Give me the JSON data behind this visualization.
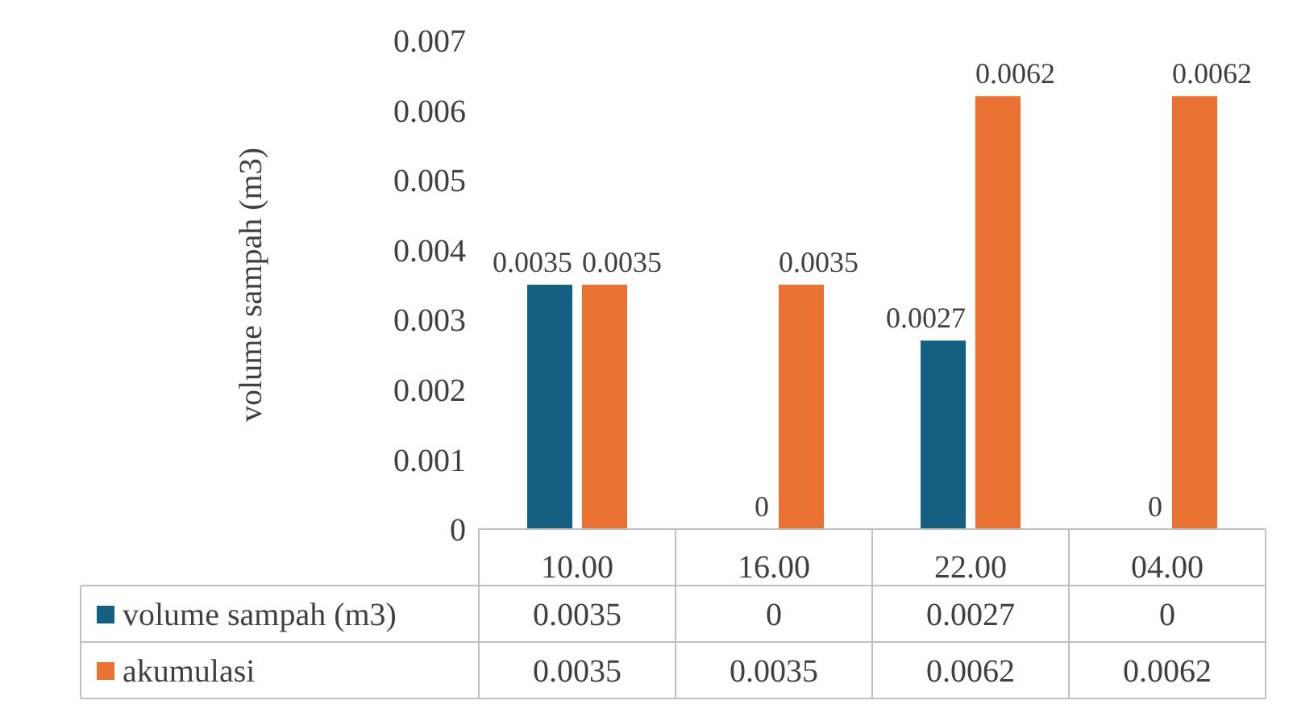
{
  "chart_data": {
    "type": "bar",
    "ylabel": "volume sampah (m3)",
    "categories": [
      "10.00",
      "16.00",
      "22.00",
      "04.00"
    ],
    "series": [
      {
        "name": "volume sampah (m3)",
        "color": "#156082",
        "values": [
          0.0035,
          0,
          0.0027,
          0
        ]
      },
      {
        "name": "akumulasi",
        "color": "#e97132",
        "values": [
          0.0035,
          0.0035,
          0.0062,
          0.0062
        ]
      }
    ],
    "annotations": [
      {
        "text": "0.0035",
        "x": "10.00",
        "y": 0.0035
      },
      {
        "text": "0.0035",
        "x": "10.00",
        "y": 0.0035
      },
      {
        "text": "0",
        "x": "16.00",
        "y": 0
      },
      {
        "text": "0.0035",
        "x": "16.00",
        "y": 0.0035
      },
      {
        "text": "0.0027",
        "x": "22.00",
        "y": 0.0027
      },
      {
        "text": "0.0062",
        "x": "22.00",
        "y": 0.0062
      },
      {
        "text": "0",
        "x": "04.00",
        "y": 0
      },
      {
        "text": "0.0062",
        "x": "04.00",
        "y": 0.0062
      }
    ],
    "ylim": [
      0,
      0.007
    ],
    "yticks": [
      0,
      0.001,
      0.002,
      0.003,
      0.004,
      0.005,
      0.006,
      0.007
    ],
    "grid": false,
    "data_labels": true,
    "legend": "bottom"
  }
}
